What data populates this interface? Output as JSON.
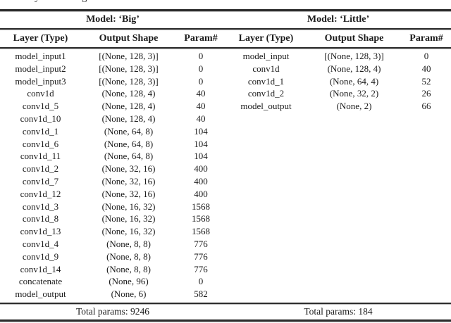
{
  "caption_fragment": {
    "glyphs": [
      "y",
      "g"
    ]
  },
  "tables": {
    "columns": [
      "Layer (Type)",
      "Output Shape",
      "Param#"
    ],
    "big": {
      "title": "Model: ‘Big’",
      "rows": [
        [
          "model_input1",
          "[(None, 128, 3)]",
          "0"
        ],
        [
          "model_input2",
          "[(None, 128, 3)]",
          "0"
        ],
        [
          "model_input3",
          "[(None, 128, 3)]",
          "0"
        ],
        [
          "conv1d",
          "(None, 128, 4)",
          "40"
        ],
        [
          "conv1d_5",
          "(None, 128, 4)",
          "40"
        ],
        [
          "conv1d_10",
          "(None, 128, 4)",
          "40"
        ],
        [
          "conv1d_1",
          "(None, 64, 8)",
          "104"
        ],
        [
          "conv1d_6",
          "(None, 64, 8)",
          "104"
        ],
        [
          "conv1d_11",
          "(None, 64, 8)",
          "104"
        ],
        [
          "conv1d_2",
          "(None, 32, 16)",
          "400"
        ],
        [
          "conv1d_7",
          "(None, 32, 16)",
          "400"
        ],
        [
          "conv1d_12",
          "(None, 32, 16)",
          "400"
        ],
        [
          "conv1d_3",
          "(None, 16, 32)",
          "1568"
        ],
        [
          "conv1d_8",
          "(None, 16, 32)",
          "1568"
        ],
        [
          "conv1d_13",
          "(None, 16, 32)",
          "1568"
        ],
        [
          "conv1d_4",
          "(None, 8, 8)",
          "776"
        ],
        [
          "conv1d_9",
          "(None, 8, 8)",
          "776"
        ],
        [
          "conv1d_14",
          "(None, 8, 8)",
          "776"
        ],
        [
          "concatenate",
          "(None, 96)",
          "0"
        ],
        [
          "model_output",
          "(None, 6)",
          "582"
        ]
      ],
      "total": "Total params: 9246"
    },
    "little": {
      "title": "Model: ‘Little’",
      "rows": [
        [
          "model_input",
          "[(None, 128, 3)]",
          "0"
        ],
        [
          "conv1d",
          "(None, 128, 4)",
          "40"
        ],
        [
          "conv1d_1",
          "(None, 64, 4)",
          "52"
        ],
        [
          "conv1d_2",
          "(None, 32, 2)",
          "26"
        ],
        [
          "model_output",
          "(None, 2)",
          "66"
        ]
      ],
      "total": "Total params: 184"
    }
  },
  "colors": {
    "rule": "#2c2c2c",
    "text": "#1b1b1b",
    "background": "#ffffff"
  }
}
